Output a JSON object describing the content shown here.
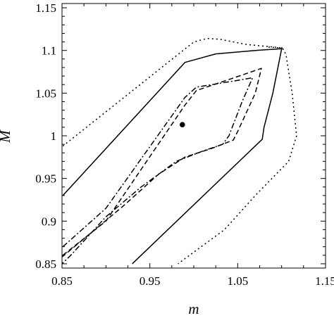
{
  "chart_data": {
    "type": "line",
    "xlabel": "m",
    "ylabel": "M",
    "xlim": [
      0.85,
      1.15
    ],
    "ylim": [
      0.845,
      1.155
    ],
    "grid": false,
    "legend": "none",
    "xticks": [
      {
        "value": 0.85,
        "label": "0.85"
      },
      {
        "value": 0.95,
        "label": "0.95"
      },
      {
        "value": 1.05,
        "label": "1.05"
      },
      {
        "value": 1.15,
        "label": "1.15"
      }
    ],
    "xminor": [
      0.875,
      0.9,
      0.925,
      0.975,
      1.0,
      1.025,
      1.075,
      1.1,
      1.125
    ],
    "yticks": [
      {
        "value": 0.85,
        "label": "0.85"
      },
      {
        "value": 0.9,
        "label": "0.9"
      },
      {
        "value": 0.95,
        "label": "0.95"
      },
      {
        "value": 1.0,
        "label": "1"
      },
      {
        "value": 1.05,
        "label": "1.05"
      },
      {
        "value": 1.1,
        "label": "1.1"
      },
      {
        "value": 1.15,
        "label": "1.15"
      }
    ],
    "yminor": [
      0.86,
      0.87,
      0.88,
      0.89,
      0.91,
      0.92,
      0.93,
      0.94,
      0.96,
      0.97,
      0.98,
      0.99,
      1.01,
      1.02,
      1.03,
      1.04,
      1.06,
      1.07,
      1.08,
      1.09,
      1.11,
      1.12,
      1.13,
      1.14
    ],
    "series": [
      {
        "style": "solid",
        "segments": [
          [
            [
              0.851,
              0.93
            ],
            [
              0.99,
              1.086
            ],
            [
              1.025,
              1.096
            ],
            [
              1.07,
              1.1
            ],
            [
              1.1,
              1.102
            ],
            [
              1.09,
              1.05
            ],
            [
              1.08,
              1.01
            ],
            [
              1.078,
              0.996
            ],
            [
              0.93,
              0.85
            ]
          ]
        ]
      },
      {
        "style": "dotted",
        "segments": [
          [
            [
              0.851,
              0.988
            ],
            [
              1.0,
              1.11
            ],
            [
              1.015,
              1.114
            ],
            [
              1.03,
              1.113
            ],
            [
              1.06,
              1.107
            ],
            [
              1.101,
              1.103
            ],
            [
              1.105,
              1.095
            ],
            [
              1.112,
              1.05
            ],
            [
              1.117,
              1.0
            ],
            [
              1.108,
              0.97
            ],
            [
              1.07,
              0.93
            ],
            [
              1.035,
              0.89
            ],
            [
              0.982,
              0.85
            ]
          ],
          [
            [
              1.101,
              1.103
            ],
            [
              1.085,
              1.104
            ]
          ]
        ]
      },
      {
        "style": "dashed",
        "segments": [
          [
            [
              0.851,
              0.86
            ],
            [
              0.9,
              0.9
            ],
            [
              0.99,
              1.036
            ],
            [
              1.003,
              1.053
            ],
            [
              1.06,
              1.073
            ],
            [
              1.077,
              1.079
            ],
            [
              1.07,
              1.05
            ],
            [
              1.05,
              1.005
            ],
            [
              1.045,
              0.995
            ],
            [
              1.02,
              0.985
            ],
            [
              0.99,
              0.975
            ],
            [
              0.96,
              0.955
            ],
            [
              0.92,
              0.918
            ],
            [
              0.87,
              0.875
            ],
            [
              0.85,
              0.858
            ]
          ]
        ]
      },
      {
        "style": "dashdot",
        "segments": [
          [
            [
              0.851,
              0.87
            ],
            [
              0.9,
              0.915
            ],
            [
              0.99,
              1.045
            ],
            [
              1.003,
              1.057
            ],
            [
              1.05,
              1.065
            ],
            [
              1.067,
              1.068
            ],
            [
              1.055,
              1.04
            ],
            [
              1.04,
              1.0
            ],
            [
              1.033,
              0.99
            ],
            [
              1.01,
              0.982
            ],
            [
              0.98,
              0.97
            ],
            [
              0.94,
              0.94
            ],
            [
              0.9,
              0.905
            ],
            [
              0.86,
              0.86
            ],
            [
              0.85,
              0.85
            ]
          ]
        ]
      }
    ],
    "points": [
      {
        "x": 0.987,
        "y": 1.013
      }
    ]
  }
}
